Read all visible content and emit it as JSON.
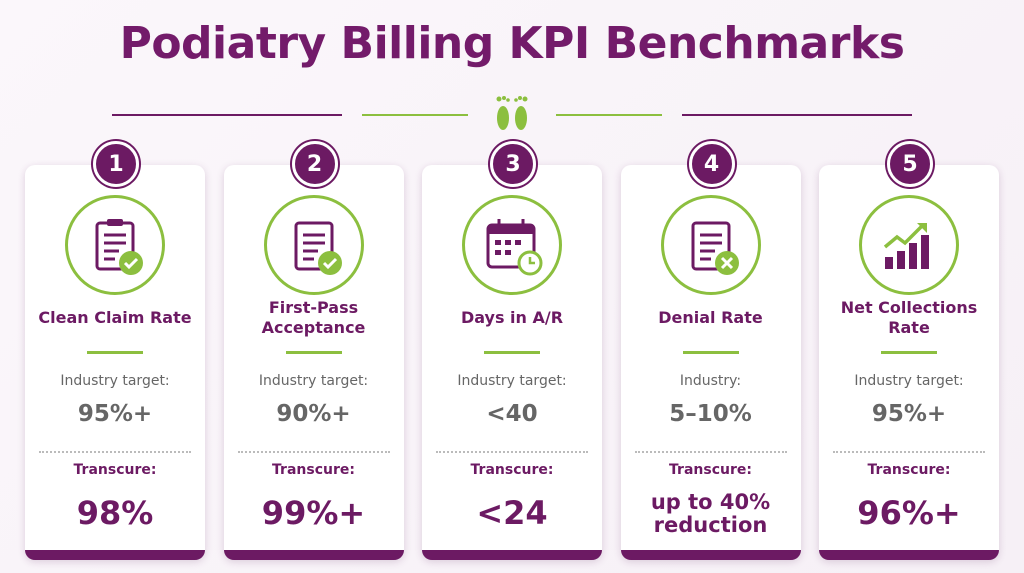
{
  "title": "Podiatry Billing KPI Benchmarks",
  "cards": [
    {
      "number": "1",
      "label": "Clean Claim Rate",
      "industry_label": "Industry target:",
      "industry_value": "95%+",
      "transcure_label": "Transcure:",
      "transcure_value": "98%"
    },
    {
      "number": "2",
      "label": "First-Pass Acceptance",
      "industry_label": "Industry target:",
      "industry_value": "90%+",
      "transcure_label": "Transcure:",
      "transcure_value": "99%+"
    },
    {
      "number": "3",
      "label": "Days in A/R",
      "industry_label": "Industry target:",
      "industry_value": "<40",
      "transcure_label": "Transcure:",
      "transcure_value": "<24"
    },
    {
      "number": "4",
      "label": "Denial Rate",
      "industry_label": "Industry:",
      "industry_value": "5–10%",
      "transcure_label": "Transcure:",
      "transcure_value": "up to 40% reduction"
    },
    {
      "number": "5",
      "label": "Net Collections Rate",
      "industry_label": "Industry target:",
      "industry_value": "95%+",
      "transcure_label": "Transcure:",
      "transcure_value": "96%+"
    }
  ]
}
